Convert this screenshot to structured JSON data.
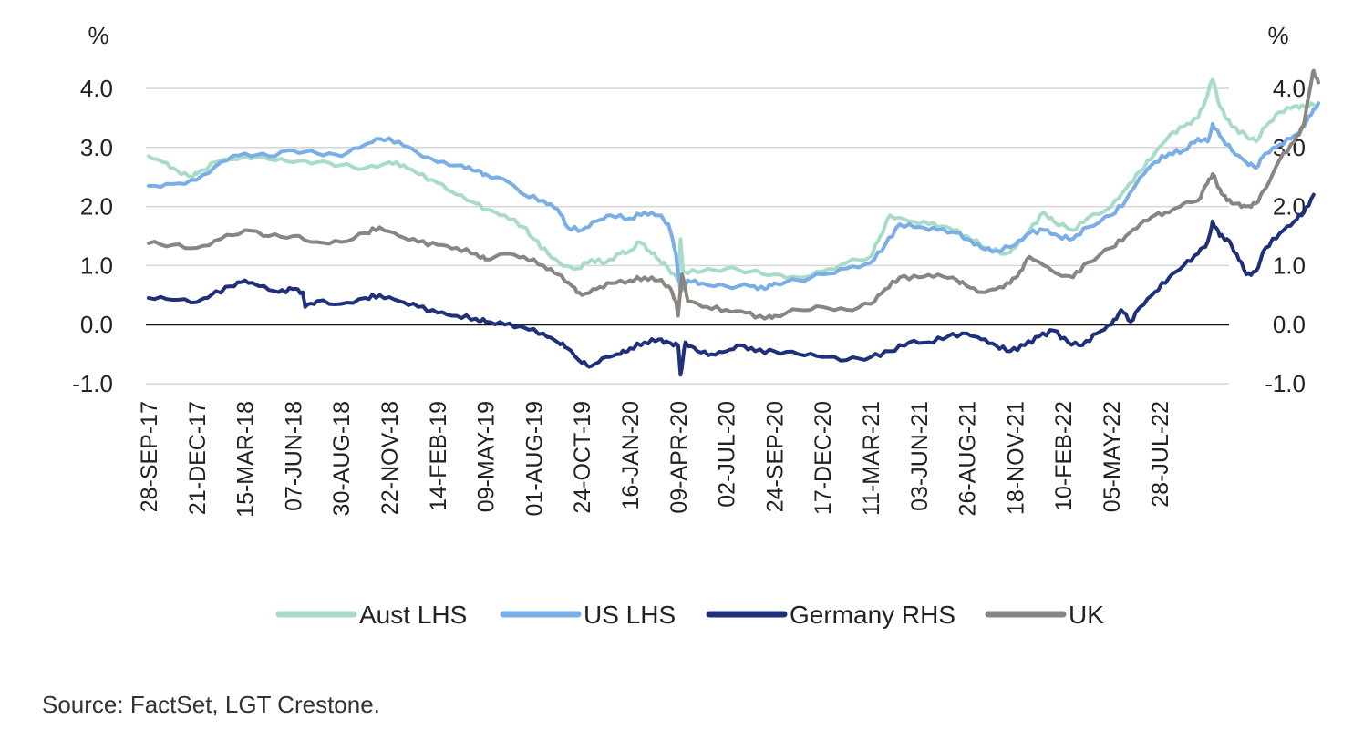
{
  "chart_data": {
    "type": "line",
    "title": "",
    "y_unit_left": "%",
    "y_unit_right": "%",
    "ylim": [
      -1.0,
      4.0
    ],
    "yticks": [
      -1.0,
      0.0,
      1.0,
      2.0,
      3.0,
      4.0
    ],
    "ytick_labels": [
      "-1.0",
      "0.0",
      "1.0",
      "2.0",
      "3.0",
      "4.0"
    ],
    "zero_line": true,
    "grid": "horizontal",
    "legend_position": "bottom",
    "x_tick_labels": [
      "28-SEP-17",
      "21-DEC-17",
      "15-MAR-18",
      "07-JUN-18",
      "30-AUG-18",
      "22-NOV-18",
      "14-FEB-19",
      "09-MAY-19",
      "01-AUG-19",
      "24-OCT-19",
      "16-JAN-20",
      "09-APR-20",
      "02-JUL-20",
      "24-SEP-20",
      "17-DEC-20",
      "11-MAR-21",
      "03-JUN-21",
      "26-AUG-21",
      "18-NOV-21",
      "10-FEB-22",
      "05-MAY-22",
      "28-JUL-22"
    ],
    "x_index_range": [
      0,
      24.3
    ],
    "series": [
      {
        "name": "Aust LHS",
        "color": "#a8dcc8",
        "points": [
          [
            0,
            2.85
          ],
          [
            0.3,
            2.75
          ],
          [
            0.6,
            2.6
          ],
          [
            0.9,
            2.5
          ],
          [
            1,
            2.55
          ],
          [
            1.4,
            2.75
          ],
          [
            2,
            2.85
          ],
          [
            2.5,
            2.8
          ],
          [
            3,
            2.75
          ],
          [
            3.5,
            2.75
          ],
          [
            4,
            2.7
          ],
          [
            4.5,
            2.65
          ],
          [
            5,
            2.75
          ],
          [
            5.3,
            2.7
          ],
          [
            5.6,
            2.55
          ],
          [
            6,
            2.4
          ],
          [
            6.4,
            2.2
          ],
          [
            6.8,
            2.05
          ],
          [
            7,
            1.95
          ],
          [
            7.4,
            1.85
          ],
          [
            7.8,
            1.65
          ],
          [
            8,
            1.45
          ],
          [
            8.3,
            1.2
          ],
          [
            8.6,
            1.0
          ],
          [
            8.9,
            0.95
          ],
          [
            9.2,
            1.1
          ],
          [
            9.5,
            1.05
          ],
          [
            9.8,
            1.2
          ],
          [
            10,
            1.25
          ],
          [
            10.2,
            1.4
          ],
          [
            10.4,
            1.25
          ],
          [
            10.6,
            1.1
          ],
          [
            10.8,
            0.95
          ],
          [
            11.0,
            0.75
          ],
          [
            11.05,
            1.45
          ],
          [
            11.1,
            0.9
          ],
          [
            11.5,
            0.9
          ],
          [
            12,
            0.95
          ],
          [
            12.5,
            0.9
          ],
          [
            13,
            0.85
          ],
          [
            13.5,
            0.8
          ],
          [
            14,
            0.9
          ],
          [
            14.5,
            1.05
          ],
          [
            15,
            1.15
          ],
          [
            15.2,
            1.5
          ],
          [
            15.4,
            1.85
          ],
          [
            15.8,
            1.75
          ],
          [
            16.2,
            1.7
          ],
          [
            16.6,
            1.65
          ],
          [
            17,
            1.5
          ],
          [
            17.4,
            1.3
          ],
          [
            17.8,
            1.2
          ],
          [
            18,
            1.3
          ],
          [
            18.3,
            1.6
          ],
          [
            18.6,
            1.9
          ],
          [
            18.8,
            1.75
          ],
          [
            19.2,
            1.6
          ],
          [
            19.5,
            1.8
          ],
          [
            20,
            2.0
          ],
          [
            20.3,
            2.3
          ],
          [
            20.6,
            2.6
          ],
          [
            20.9,
            2.9
          ],
          [
            21.2,
            3.2
          ],
          [
            21.5,
            3.35
          ],
          [
            21.8,
            3.5
          ],
          [
            22.0,
            3.9
          ],
          [
            22.1,
            4.15
          ],
          [
            22.25,
            3.7
          ],
          [
            22.5,
            3.35
          ],
          [
            22.8,
            3.2
          ],
          [
            23.0,
            3.1
          ],
          [
            23.2,
            3.35
          ],
          [
            23.5,
            3.6
          ],
          [
            23.8,
            3.7
          ],
          [
            24.0,
            3.7
          ],
          [
            24.2,
            3.72
          ]
        ]
      },
      {
        "name": "US LHS",
        "color": "#7aaee6",
        "points": [
          [
            0,
            2.35
          ],
          [
            0.5,
            2.38
          ],
          [
            1,
            2.45
          ],
          [
            1.5,
            2.75
          ],
          [
            2,
            2.9
          ],
          [
            2.5,
            2.85
          ],
          [
            3,
            2.95
          ],
          [
            3.5,
            2.9
          ],
          [
            4,
            2.85
          ],
          [
            4.5,
            3.05
          ],
          [
            4.8,
            3.15
          ],
          [
            5.2,
            3.1
          ],
          [
            5.6,
            2.9
          ],
          [
            6,
            2.75
          ],
          [
            6.5,
            2.7
          ],
          [
            6.8,
            2.6
          ],
          [
            7,
            2.55
          ],
          [
            7.5,
            2.4
          ],
          [
            7.8,
            2.2
          ],
          [
            8.2,
            2.1
          ],
          [
            8.5,
            1.95
          ],
          [
            8.7,
            1.65
          ],
          [
            9,
            1.6
          ],
          [
            9.3,
            1.75
          ],
          [
            9.6,
            1.85
          ],
          [
            10,
            1.8
          ],
          [
            10.3,
            1.9
          ],
          [
            10.6,
            1.85
          ],
          [
            10.8,
            1.7
          ],
          [
            10.95,
            1.2
          ],
          [
            11.05,
            0.55
          ],
          [
            11.2,
            0.75
          ],
          [
            11.5,
            0.7
          ],
          [
            12,
            0.65
          ],
          [
            12.5,
            0.65
          ],
          [
            12.8,
            0.6
          ],
          [
            13,
            0.7
          ],
          [
            13.5,
            0.75
          ],
          [
            14,
            0.85
          ],
          [
            14.5,
            0.95
          ],
          [
            15,
            1.05
          ],
          [
            15.3,
            1.35
          ],
          [
            15.6,
            1.7
          ],
          [
            16,
            1.65
          ],
          [
            16.4,
            1.6
          ],
          [
            16.8,
            1.55
          ],
          [
            17,
            1.45
          ],
          [
            17.3,
            1.3
          ],
          [
            17.6,
            1.25
          ],
          [
            18,
            1.35
          ],
          [
            18.3,
            1.55
          ],
          [
            18.6,
            1.6
          ],
          [
            18.9,
            1.5
          ],
          [
            19.2,
            1.45
          ],
          [
            19.5,
            1.65
          ],
          [
            20,
            1.85
          ],
          [
            20.3,
            2.1
          ],
          [
            20.6,
            2.5
          ],
          [
            20.9,
            2.75
          ],
          [
            21.2,
            2.9
          ],
          [
            21.5,
            2.95
          ],
          [
            21.8,
            3.15
          ],
          [
            22.0,
            3.1
          ],
          [
            22.1,
            3.4
          ],
          [
            22.25,
            3.2
          ],
          [
            22.5,
            2.95
          ],
          [
            22.8,
            2.75
          ],
          [
            23.0,
            2.65
          ],
          [
            23.2,
            2.9
          ],
          [
            23.5,
            3.05
          ],
          [
            23.8,
            3.2
          ],
          [
            24.0,
            3.35
          ],
          [
            24.2,
            3.65
          ],
          [
            24.3,
            3.75
          ]
        ]
      },
      {
        "name": "Germany RHS",
        "color": "#1f2f7a",
        "points": [
          [
            0,
            0.45
          ],
          [
            0.5,
            0.42
          ],
          [
            1,
            0.38
          ],
          [
            1.3,
            0.5
          ],
          [
            1.7,
            0.65
          ],
          [
            2,
            0.75
          ],
          [
            2.3,
            0.65
          ],
          [
            2.7,
            0.55
          ],
          [
            3,
            0.6
          ],
          [
            3.2,
            0.55
          ],
          [
            3.25,
            0.3
          ],
          [
            3.5,
            0.4
          ],
          [
            4,
            0.35
          ],
          [
            4.5,
            0.45
          ],
          [
            4.8,
            0.5
          ],
          [
            5.2,
            0.4
          ],
          [
            5.6,
            0.3
          ],
          [
            6,
            0.2
          ],
          [
            6.4,
            0.15
          ],
          [
            6.8,
            0.1
          ],
          [
            7,
            0.05
          ],
          [
            7.4,
            0.0
          ],
          [
            7.8,
            -0.05
          ],
          [
            8.2,
            -0.15
          ],
          [
            8.5,
            -0.3
          ],
          [
            8.7,
            -0.4
          ],
          [
            9,
            -0.65
          ],
          [
            9.2,
            -0.7
          ],
          [
            9.5,
            -0.55
          ],
          [
            9.8,
            -0.5
          ],
          [
            10,
            -0.4
          ],
          [
            10.3,
            -0.3
          ],
          [
            10.6,
            -0.25
          ],
          [
            10.8,
            -0.3
          ],
          [
            11.0,
            -0.35
          ],
          [
            11.05,
            -0.85
          ],
          [
            11.15,
            -0.3
          ],
          [
            11.4,
            -0.45
          ],
          [
            11.7,
            -0.5
          ],
          [
            12,
            -0.45
          ],
          [
            12.3,
            -0.35
          ],
          [
            12.6,
            -0.45
          ],
          [
            13,
            -0.45
          ],
          [
            13.5,
            -0.5
          ],
          [
            14,
            -0.55
          ],
          [
            14.5,
            -0.6
          ],
          [
            15,
            -0.55
          ],
          [
            15.4,
            -0.45
          ],
          [
            15.8,
            -0.3
          ],
          [
            16.2,
            -0.3
          ],
          [
            16.6,
            -0.2
          ],
          [
            17,
            -0.15
          ],
          [
            17.3,
            -0.25
          ],
          [
            17.6,
            -0.35
          ],
          [
            17.9,
            -0.45
          ],
          [
            18.2,
            -0.35
          ],
          [
            18.5,
            -0.2
          ],
          [
            18.8,
            -0.1
          ],
          [
            19.1,
            -0.3
          ],
          [
            19.4,
            -0.35
          ],
          [
            19.7,
            -0.15
          ],
          [
            20,
            0.0
          ],
          [
            20.2,
            0.25
          ],
          [
            20.4,
            0.05
          ],
          [
            20.6,
            0.3
          ],
          [
            20.9,
            0.55
          ],
          [
            21.2,
            0.8
          ],
          [
            21.5,
            1.0
          ],
          [
            21.8,
            1.2
          ],
          [
            22.0,
            1.4
          ],
          [
            22.1,
            1.75
          ],
          [
            22.25,
            1.5
          ],
          [
            22.4,
            1.45
          ],
          [
            22.6,
            1.2
          ],
          [
            22.8,
            0.85
          ],
          [
            23.0,
            0.9
          ],
          [
            23.2,
            1.3
          ],
          [
            23.5,
            1.55
          ],
          [
            23.8,
            1.75
          ],
          [
            24.0,
            1.9
          ],
          [
            24.2,
            2.2
          ]
        ]
      },
      {
        "name": "UK",
        "color": "#8a8580",
        "points": [
          [
            0,
            1.38
          ],
          [
            0.5,
            1.35
          ],
          [
            1,
            1.3
          ],
          [
            1.5,
            1.45
          ],
          [
            2,
            1.6
          ],
          [
            2.5,
            1.5
          ],
          [
            3,
            1.5
          ],
          [
            3.5,
            1.4
          ],
          [
            4,
            1.4
          ],
          [
            4.5,
            1.55
          ],
          [
            4.8,
            1.65
          ],
          [
            5.2,
            1.5
          ],
          [
            5.6,
            1.4
          ],
          [
            6,
            1.35
          ],
          [
            6.4,
            1.3
          ],
          [
            6.8,
            1.2
          ],
          [
            7,
            1.1
          ],
          [
            7.4,
            1.2
          ],
          [
            7.8,
            1.15
          ],
          [
            8.2,
            1.0
          ],
          [
            8.5,
            0.85
          ],
          [
            8.8,
            0.65
          ],
          [
            9,
            0.5
          ],
          [
            9.3,
            0.6
          ],
          [
            9.6,
            0.7
          ],
          [
            10,
            0.75
          ],
          [
            10.3,
            0.8
          ],
          [
            10.6,
            0.75
          ],
          [
            10.8,
            0.65
          ],
          [
            10.95,
            0.4
          ],
          [
            11.0,
            0.15
          ],
          [
            11.08,
            0.85
          ],
          [
            11.2,
            0.4
          ],
          [
            11.6,
            0.3
          ],
          [
            12,
            0.25
          ],
          [
            12.4,
            0.2
          ],
          [
            12.8,
            0.1
          ],
          [
            13,
            0.15
          ],
          [
            13.5,
            0.25
          ],
          [
            14,
            0.3
          ],
          [
            14.5,
            0.25
          ],
          [
            15,
            0.35
          ],
          [
            15.3,
            0.6
          ],
          [
            15.6,
            0.8
          ],
          [
            16,
            0.8
          ],
          [
            16.4,
            0.85
          ],
          [
            16.8,
            0.75
          ],
          [
            17,
            0.65
          ],
          [
            17.3,
            0.55
          ],
          [
            17.6,
            0.6
          ],
          [
            17.9,
            0.7
          ],
          [
            18.1,
            0.9
          ],
          [
            18.3,
            1.15
          ],
          [
            18.6,
            1.0
          ],
          [
            18.9,
            0.85
          ],
          [
            19.2,
            0.8
          ],
          [
            19.5,
            1.05
          ],
          [
            20,
            1.3
          ],
          [
            20.3,
            1.5
          ],
          [
            20.6,
            1.7
          ],
          [
            20.9,
            1.85
          ],
          [
            21.2,
            1.9
          ],
          [
            21.5,
            2.05
          ],
          [
            21.8,
            2.1
          ],
          [
            22.0,
            2.4
          ],
          [
            22.1,
            2.55
          ],
          [
            22.25,
            2.3
          ],
          [
            22.4,
            2.1
          ],
          [
            22.6,
            2.05
          ],
          [
            22.8,
            2.0
          ],
          [
            23.0,
            2.05
          ],
          [
            23.2,
            2.3
          ],
          [
            23.5,
            2.8
          ],
          [
            23.8,
            3.1
          ],
          [
            24.0,
            3.4
          ],
          [
            24.15,
            4.1
          ],
          [
            24.2,
            4.3
          ],
          [
            24.3,
            4.1
          ]
        ]
      }
    ]
  },
  "source": "Source: FactSet, LGT Crestone."
}
